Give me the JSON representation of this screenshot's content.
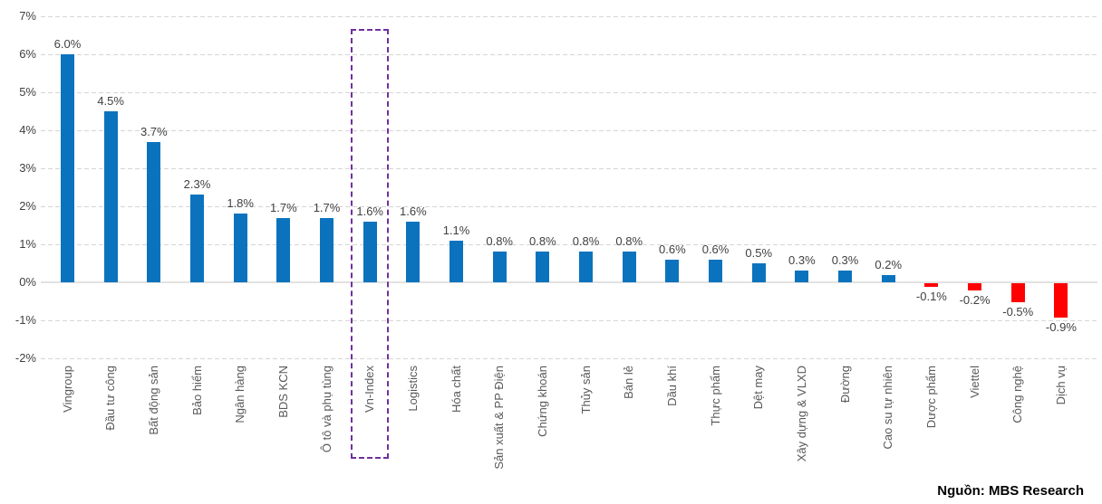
{
  "source_label": "Nguồn: MBS Research",
  "chart_data": {
    "type": "bar",
    "title": "",
    "xlabel": "",
    "ylabel": "",
    "ylim": [
      -2,
      7
    ],
    "grid": true,
    "legend_position": "none",
    "y_tick_values": [
      7,
      6,
      5,
      4,
      3,
      2,
      1,
      0,
      -1,
      -2
    ],
    "y_tick_labels": [
      "7%",
      "6%",
      "5%",
      "4%",
      "3%",
      "2%",
      "1%",
      "0%",
      "-1%",
      "-2%"
    ],
    "categories": [
      "Vingroup",
      "Đầu tư công",
      "Bất động sản",
      "Bảo hiểm",
      "Ngân hàng",
      "BDS KCN",
      "Ô tô và phụ tùng",
      "Vn-Index",
      "Logistics",
      "Hóa chất",
      "Sản xuất & PP Điện",
      "Chứng khoán",
      "Thủy sản",
      "Bán lẻ",
      "Dầu khí",
      "Thực phẩm",
      "Dệt may",
      "Xây dựng & VLXD",
      "Đường",
      "Cao su tự nhiên",
      "Dược phẩm",
      "Viettel",
      "Công nghệ",
      "Dịch vụ"
    ],
    "values": [
      6.0,
      4.5,
      3.7,
      2.3,
      1.8,
      1.7,
      1.7,
      1.6,
      1.6,
      1.1,
      0.8,
      0.8,
      0.8,
      0.8,
      0.6,
      0.6,
      0.5,
      0.3,
      0.3,
      0.2,
      -0.1,
      -0.2,
      -0.5,
      -0.9
    ],
    "value_labels": [
      "6.0%",
      "4.5%",
      "3.7%",
      "2.3%",
      "1.8%",
      "1.7%",
      "1.7%",
      "1.6%",
      "1.6%",
      "1.1%",
      "0.8%",
      "0.8%",
      "0.8%",
      "0.8%",
      "0.6%",
      "0.6%",
      "0.5%",
      "0.3%",
      "0.3%",
      "0.2%",
      "-0.1%",
      "-0.2%",
      "-0.5%",
      "-0.9%"
    ],
    "highlighted_category": "Vn-Index",
    "colors": {
      "positive_bar": "#0B73BE",
      "negative_bar": "#FF0000",
      "highlight_box": "#7030A0",
      "gridline": "#D5D5D5",
      "axis_line": "#E2E2E2",
      "value_label": "#404040",
      "category_label": "#595959",
      "tick_label": "#404040",
      "source_text": "#000000"
    }
  }
}
